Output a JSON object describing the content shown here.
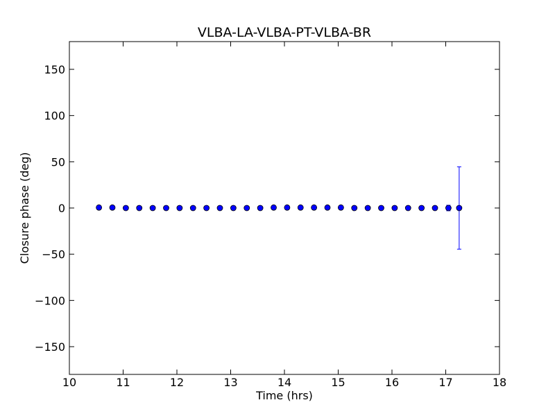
{
  "chart_data": {
    "type": "scatter",
    "title": "VLBA-LA-VLBA-PT-VLBA-BR",
    "xlabel": "Time (hrs)",
    "ylabel": "Closure phase (deg)",
    "xlim": [
      10,
      18
    ],
    "ylim": [
      -180,
      180
    ],
    "xticks": [
      10,
      11,
      12,
      13,
      14,
      15,
      16,
      17,
      18
    ],
    "xtick_labels": [
      "10",
      "11",
      "12",
      "13",
      "14",
      "15",
      "16",
      "17",
      "18"
    ],
    "yticks": [
      -150,
      -100,
      -50,
      0,
      50,
      100,
      150
    ],
    "ytick_labels": [
      "−150",
      "−100",
      "−50",
      "0",
      "50",
      "100",
      "150"
    ],
    "grid": false,
    "legend": "none",
    "series": [
      {
        "x": [
          10.55,
          10.8,
          11.05,
          11.3,
          11.55,
          11.8,
          12.05,
          12.3,
          12.55,
          12.8,
          13.05,
          13.3,
          13.55,
          13.8,
          14.05,
          14.3,
          14.55,
          14.8,
          15.05,
          15.3,
          15.55,
          15.8,
          16.05,
          16.3,
          16.55,
          16.8,
          17.05,
          17.25
        ],
        "y": [
          0.5,
          0.5,
          0.0,
          0.0,
          0.0,
          0.0,
          0.0,
          0.0,
          0.0,
          0.0,
          0.0,
          0.0,
          0.0,
          0.5,
          0.5,
          0.5,
          0.5,
          0.5,
          0.5,
          0.0,
          0.0,
          0.0,
          0.0,
          0.0,
          0.0,
          0.0,
          0.0,
          0.0
        ],
        "yerr": [
          0.5,
          0.5,
          0.5,
          0.5,
          0.5,
          0.5,
          0.5,
          0.5,
          0.5,
          0.5,
          0.5,
          0.5,
          0.5,
          0.5,
          0.5,
          0.5,
          0.5,
          0.5,
          0.5,
          0.5,
          0.5,
          0.5,
          0.5,
          0.5,
          0.5,
          0.5,
          3,
          44.5
        ]
      }
    ],
    "colors": {
      "marker_fill": "#0000ff",
      "marker_edge": "#000000",
      "errorbar": "#0000ff",
      "axes": "#000000"
    }
  }
}
